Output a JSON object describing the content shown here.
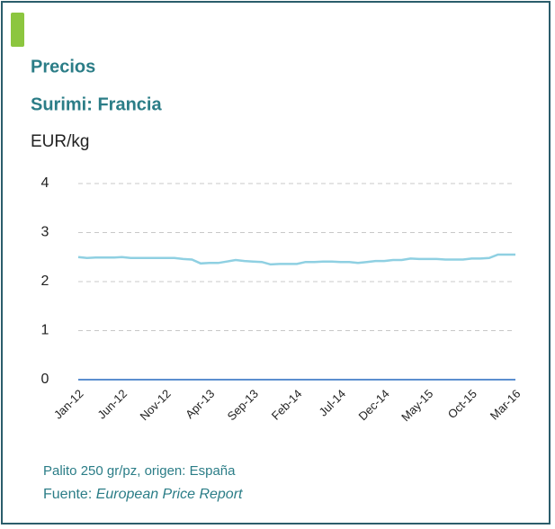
{
  "title": "Precios",
  "subtitle": "Surimi: Francia",
  "chart_data": {
    "type": "line",
    "y_label": "EUR/kg",
    "categories": [
      "Jan-12",
      null,
      null,
      null,
      null,
      "Jun-12",
      null,
      null,
      null,
      null,
      "Nov-12",
      null,
      null,
      null,
      null,
      "Apr-13",
      null,
      null,
      null,
      null,
      "Sep-13",
      null,
      null,
      null,
      null,
      "Feb-14",
      null,
      null,
      null,
      null,
      "Jul-14",
      null,
      null,
      null,
      null,
      "Dec-14",
      null,
      null,
      null,
      null,
      "May-15",
      null,
      null,
      null,
      null,
      "Oct-15",
      null,
      null,
      null,
      null,
      "Mar-16"
    ],
    "values": [
      2.5,
      2.48,
      2.49,
      2.49,
      2.49,
      2.5,
      2.48,
      2.48,
      2.48,
      2.48,
      2.48,
      2.48,
      2.46,
      2.45,
      2.37,
      2.38,
      2.38,
      2.41,
      2.44,
      2.42,
      2.41,
      2.4,
      2.35,
      2.36,
      2.36,
      2.36,
      2.4,
      2.4,
      2.41,
      2.41,
      2.4,
      2.4,
      2.38,
      2.4,
      2.42,
      2.42,
      2.44,
      2.44,
      2.47,
      2.46,
      2.46,
      2.46,
      2.45,
      2.45,
      2.45,
      2.47,
      2.47,
      2.48,
      2.55,
      2.55,
      2.55
    ],
    "color": "#8fd0e2",
    "ylim": [
      0,
      4
    ],
    "yticks": [
      0,
      1,
      2,
      3,
      4
    ],
    "grid": true
  },
  "note": "Palito 250 gr/pz, origen: España",
  "source_prefix": "Fuente:",
  "source_name": "European Price Report"
}
